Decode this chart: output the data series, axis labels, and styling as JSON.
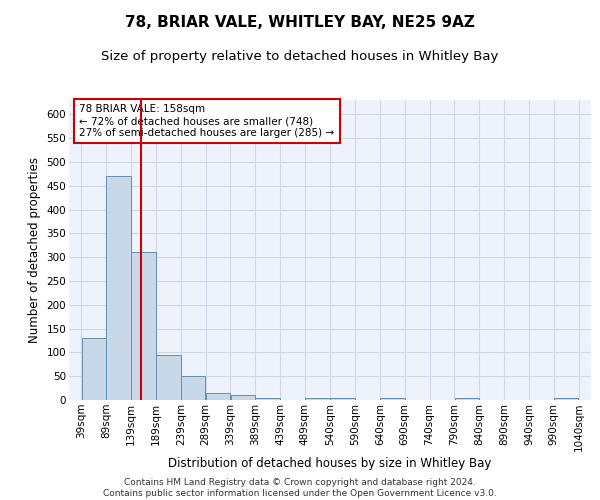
{
  "title1": "78, BRIAR VALE, WHITLEY BAY, NE25 9AZ",
  "title2": "Size of property relative to detached houses in Whitley Bay",
  "xlabel": "Distribution of detached houses by size in Whitley Bay",
  "ylabel": "Number of detached properties",
  "footnote": "Contains HM Land Registry data © Crown copyright and database right 2024.\nContains public sector information licensed under the Open Government Licence v3.0.",
  "annotation_line1": "78 BRIAR VALE: 158sqm",
  "annotation_line2": "← 72% of detached houses are smaller (748)",
  "annotation_line3": "27% of semi-detached houses are larger (285) →",
  "bar_color": "#c8d8e8",
  "bar_edge_color": "#6090b8",
  "bins": [
    39,
    89,
    139,
    189,
    239,
    289,
    339,
    389,
    439,
    489,
    540,
    590,
    640,
    690,
    740,
    790,
    840,
    890,
    940,
    990,
    1040
  ],
  "bin_labels": [
    "39sqm",
    "89sqm",
    "139sqm",
    "189sqm",
    "239sqm",
    "289sqm",
    "339sqm",
    "389sqm",
    "439sqm",
    "489sqm",
    "540sqm",
    "590sqm",
    "640sqm",
    "690sqm",
    "740sqm",
    "790sqm",
    "840sqm",
    "890sqm",
    "940sqm",
    "990sqm",
    "1040sqm"
  ],
  "values": [
    130,
    470,
    310,
    95,
    50,
    15,
    10,
    5,
    0,
    5,
    5,
    0,
    5,
    0,
    0,
    5,
    0,
    0,
    0,
    5,
    0
  ],
  "red_line_x": 158,
  "ylim": [
    0,
    630
  ],
  "yticks": [
    0,
    50,
    100,
    150,
    200,
    250,
    300,
    350,
    400,
    450,
    500,
    550,
    600
  ],
  "grid_color": "#d0d8e8",
  "background_color": "#eef2fa",
  "red_color": "#cc0000",
  "annotation_box_color": "#cc0000",
  "title1_fontsize": 11,
  "title2_fontsize": 9.5,
  "axis_label_fontsize": 8.5,
  "tick_fontsize": 7.5,
  "annotation_fontsize": 7.5,
  "footnote_fontsize": 6.5
}
